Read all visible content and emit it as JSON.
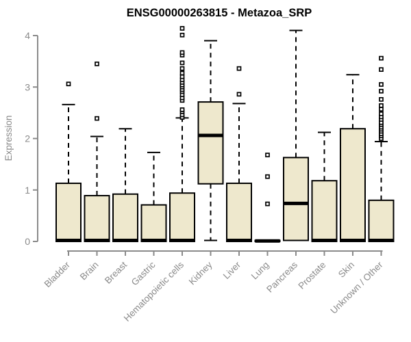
{
  "chart_data": {
    "type": "boxplot",
    "title": "ENSG00000263815 - Metazoa_SRP",
    "ylabel": "Expression",
    "xlabel": "",
    "ylim": [
      0,
      4.2
    ],
    "yticks": [
      0,
      1,
      2,
      3,
      4
    ],
    "grid": false,
    "legend": null,
    "colors": {
      "box_fill": "#EEE8CD",
      "box_stroke": "#000000",
      "median": "#000000",
      "whisker": "#000000",
      "axis": "#8a8a8a",
      "title": "#000000",
      "background": "#ffffff"
    },
    "categories": [
      "Bladder",
      "Brain",
      "Breast",
      "Gastric",
      "Hematopoietic cells",
      "Kidney",
      "Liver",
      "Lung",
      "Pancreas",
      "Prostate",
      "Skin",
      "Unknown / Other"
    ],
    "series": [
      {
        "name": "Bladder",
        "q1": 0.0,
        "median": 0.02,
        "q3": 1.13,
        "whisker_low": 0.0,
        "whisker_high": 2.66,
        "outliers": [
          3.06
        ]
      },
      {
        "name": "Brain",
        "q1": 0.0,
        "median": 0.02,
        "q3": 0.89,
        "whisker_low": 0.0,
        "whisker_high": 2.04,
        "outliers": [
          2.39,
          3.45
        ]
      },
      {
        "name": "Breast",
        "q1": 0.0,
        "median": 0.02,
        "q3": 0.92,
        "whisker_low": 0.0,
        "whisker_high": 2.19,
        "outliers": []
      },
      {
        "name": "Gastric",
        "q1": 0.0,
        "median": 0.02,
        "q3": 0.71,
        "whisker_low": 0.0,
        "whisker_high": 1.73,
        "outliers": []
      },
      {
        "name": "Hematopoietic cells",
        "q1": 0.0,
        "median": 0.02,
        "q3": 0.94,
        "whisker_low": 0.0,
        "whisker_high": 2.4,
        "outliers": [
          2.41,
          2.46,
          2.52,
          2.56,
          2.74,
          2.79,
          2.85,
          2.91,
          2.95,
          3.0,
          3.04,
          3.09,
          3.14,
          3.2,
          3.27,
          3.36,
          3.47,
          3.62,
          3.67,
          4.01,
          4.14
        ]
      },
      {
        "name": "Kidney",
        "q1": 1.12,
        "median": 2.06,
        "q3": 2.71,
        "whisker_low": 0.02,
        "whisker_high": 3.9,
        "outliers": []
      },
      {
        "name": "Liver",
        "q1": 0.0,
        "median": 0.02,
        "q3": 1.13,
        "whisker_low": 0.0,
        "whisker_high": 2.68,
        "outliers": [
          2.86,
          3.36
        ]
      },
      {
        "name": "Lung",
        "q1": 0.0,
        "median": 0.01,
        "q3": 0.02,
        "whisker_low": 0.0,
        "whisker_high": 0.02,
        "outliers": [
          0.73,
          1.26,
          1.68
        ]
      },
      {
        "name": "Pancreas",
        "q1": 0.02,
        "median": 0.74,
        "q3": 1.63,
        "whisker_low": 0.02,
        "whisker_high": 4.1,
        "outliers": []
      },
      {
        "name": "Prostate",
        "q1": 0.0,
        "median": 0.02,
        "q3": 1.18,
        "whisker_low": 0.0,
        "whisker_high": 2.12,
        "outliers": []
      },
      {
        "name": "Skin",
        "q1": 0.0,
        "median": 0.02,
        "q3": 2.19,
        "whisker_low": 0.0,
        "whisker_high": 3.24,
        "outliers": []
      },
      {
        "name": "Unknown / Other",
        "q1": 0.0,
        "median": 0.02,
        "q3": 0.8,
        "whisker_low": 0.0,
        "whisker_high": 1.94,
        "outliers": [
          2.0,
          2.05,
          2.09,
          2.14,
          2.18,
          2.22,
          2.27,
          2.31,
          2.37,
          2.42,
          2.48,
          2.57,
          2.64,
          2.76,
          2.92,
          3.05,
          3.34,
          3.56
        ]
      }
    ]
  }
}
